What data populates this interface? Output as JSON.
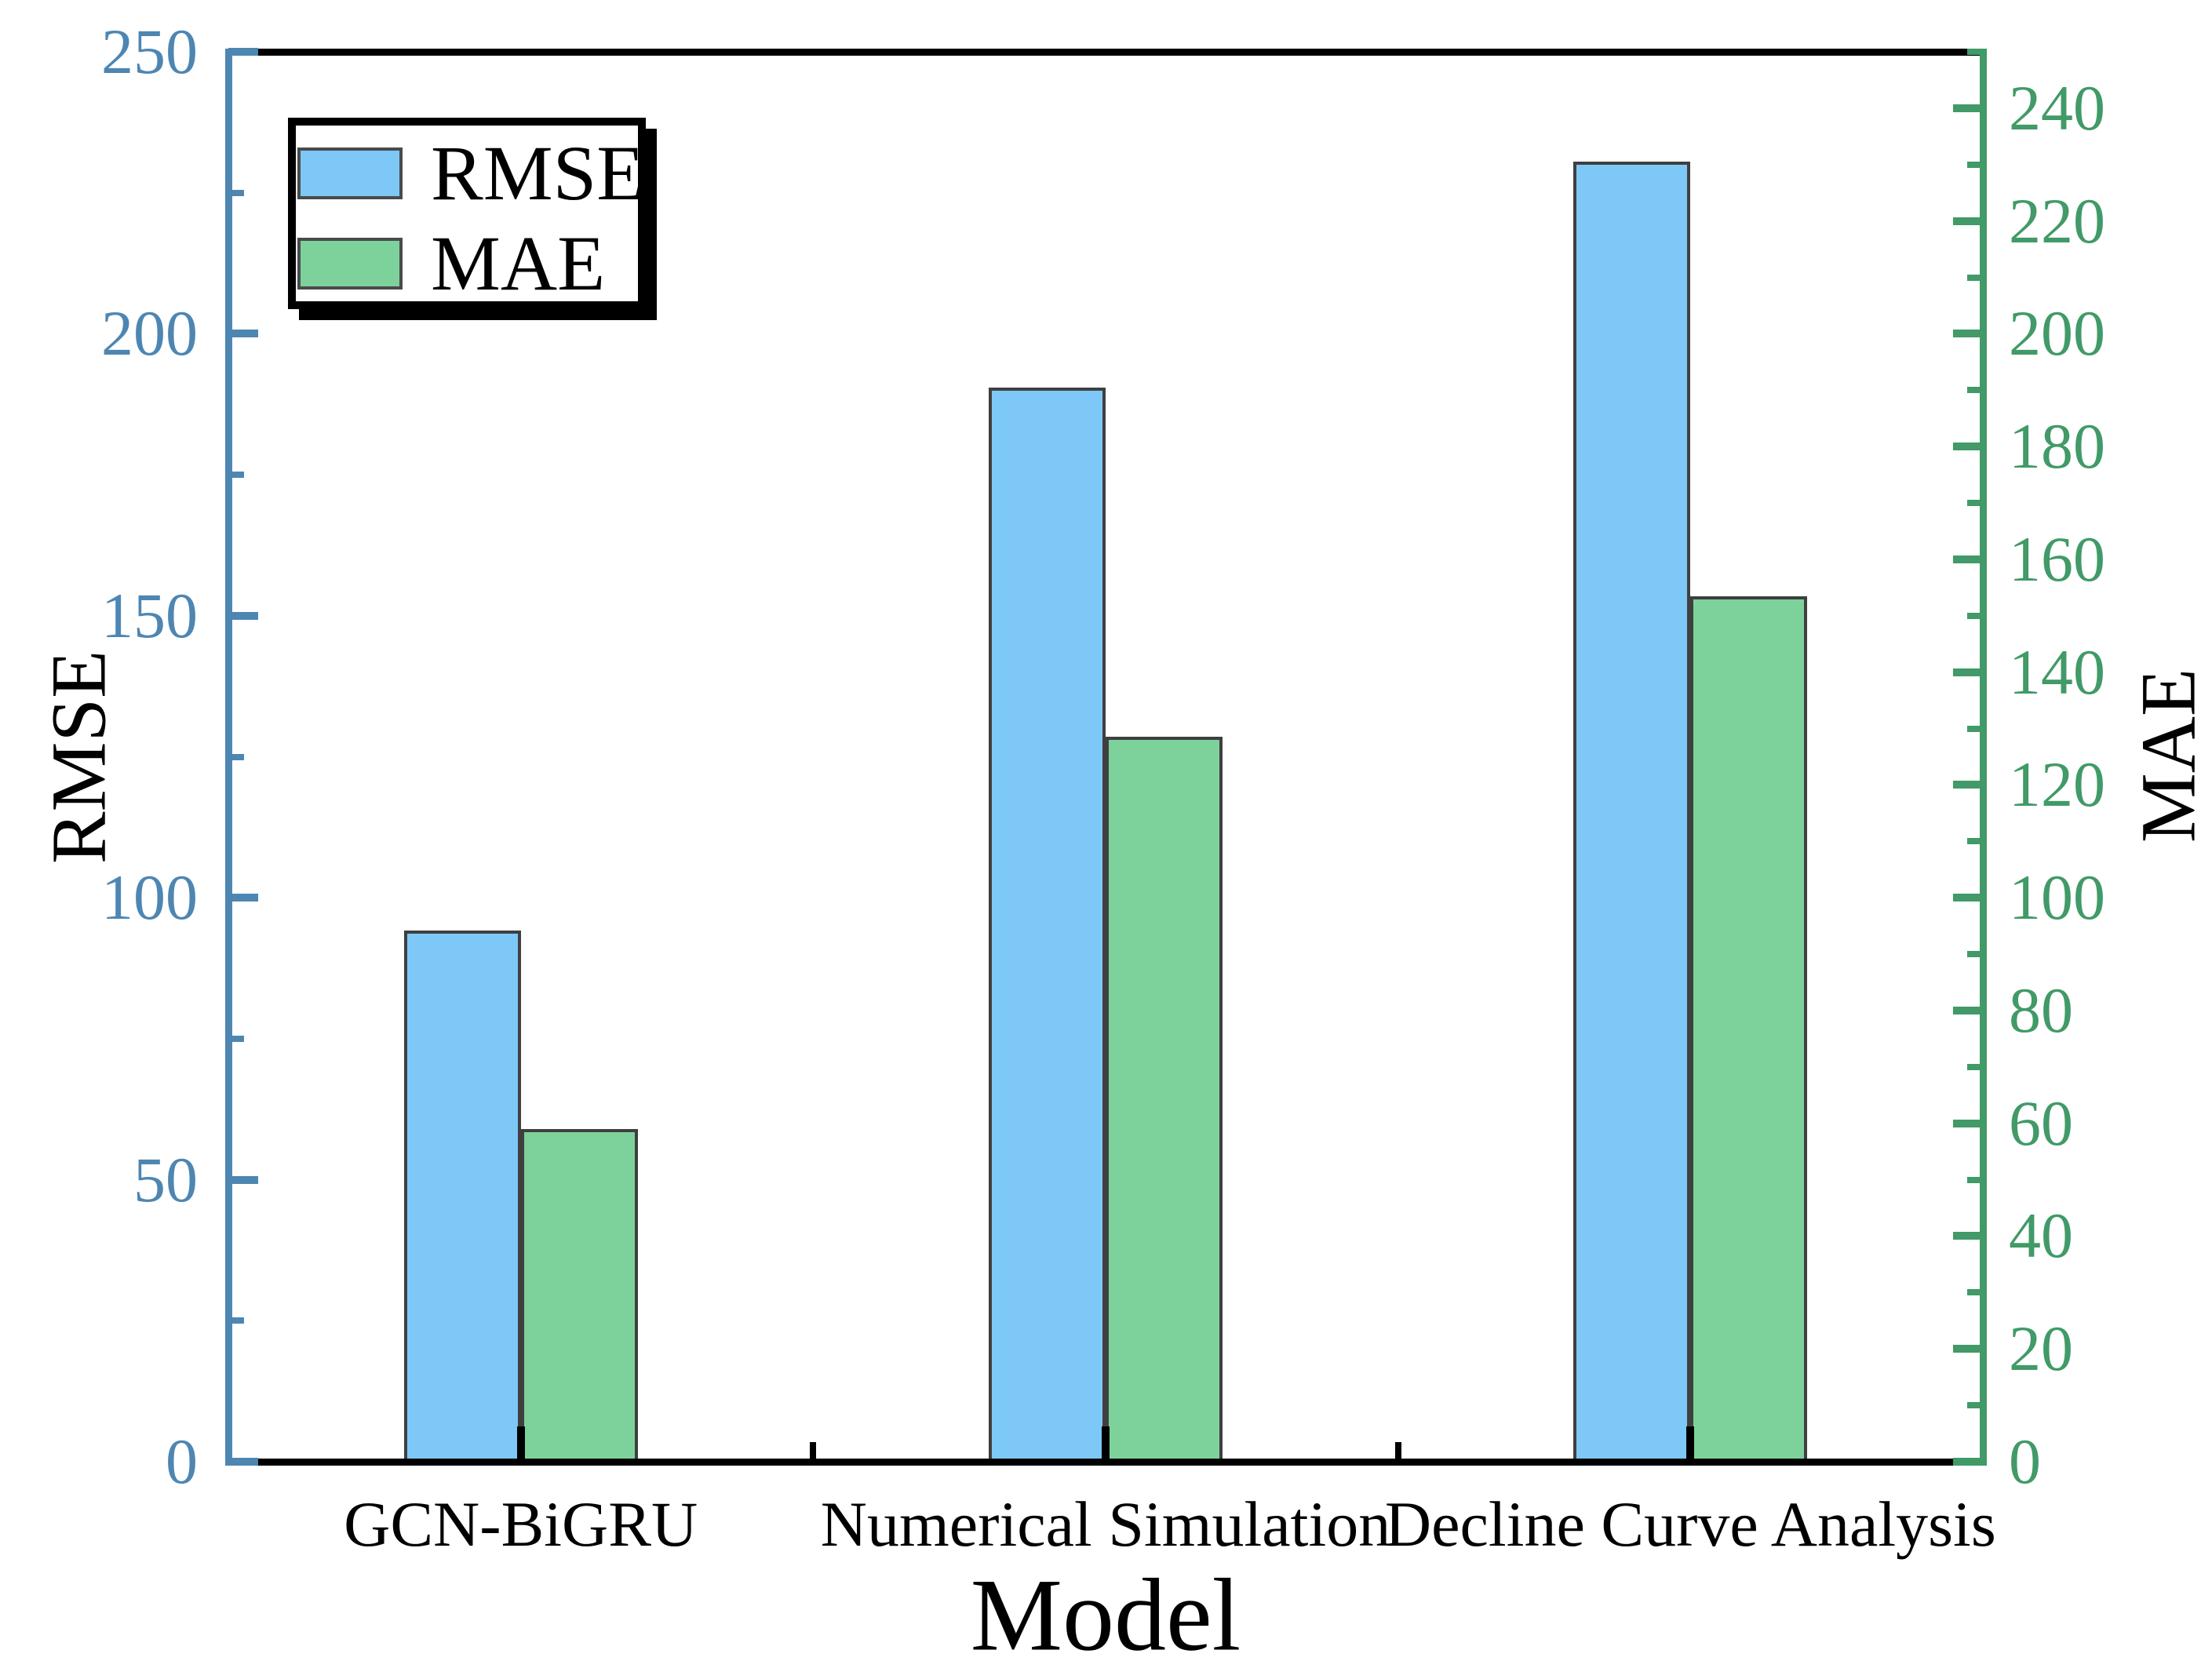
{
  "figure": {
    "background": "#FFFFFF",
    "left_axis": {
      "title": "RMSE",
      "color": "#4E86B2",
      "min": 0,
      "max": 250,
      "major_ticks": [
        0,
        50,
        100,
        150,
        200,
        250
      ],
      "minor_ticks": [
        25,
        75,
        125,
        175,
        225
      ],
      "tick_label_color": "#4E86B2"
    },
    "right_axis": {
      "title": "MAE",
      "color": "#419A67",
      "min": 0,
      "max": 250,
      "major_ticks": [
        0,
        20,
        40,
        60,
        80,
        100,
        120,
        140,
        160,
        180,
        200,
        220,
        240
      ],
      "minor_ticks": [
        10,
        30,
        50,
        70,
        90,
        110,
        130,
        150,
        170,
        190,
        210,
        230,
        250
      ],
      "tick_label_color": "#419A67"
    },
    "x_axis": {
      "title": "Model",
      "color": "#000000"
    },
    "legend": {
      "border_color": "#000000",
      "shadow_color": "#000000",
      "items": [
        {
          "label": "RMSE",
          "swatch_color": "#7EC8F8"
        },
        {
          "label": "MAE",
          "swatch_color": "#7DD29B"
        }
      ]
    }
  },
  "chart_data": {
    "type": "bar",
    "title": "",
    "xlabel": "Model",
    "ylabel_left": "RMSE",
    "ylabel_right": "MAE",
    "categories": [
      "GCN-BiGRU",
      "Numerical Simulation",
      "Decline Curve Analysis"
    ],
    "series": [
      {
        "name": "RMSE",
        "axis": "left",
        "values": [
          94.2,
          190.5,
          230.5
        ],
        "fill": "#7EC8F8",
        "edge": "#3F3F3F"
      },
      {
        "name": "MAE",
        "axis": "right",
        "values": [
          59.0,
          128.5,
          153.5
        ],
        "fill": "#7DD29B",
        "edge": "#3F3F3F"
      }
    ],
    "left_ylim": [
      0,
      250
    ],
    "right_ylim": [
      0,
      250
    ],
    "left_tick_step_major": 50,
    "right_tick_step_major": 20,
    "grid": false,
    "legend_position": "upper-left"
  }
}
